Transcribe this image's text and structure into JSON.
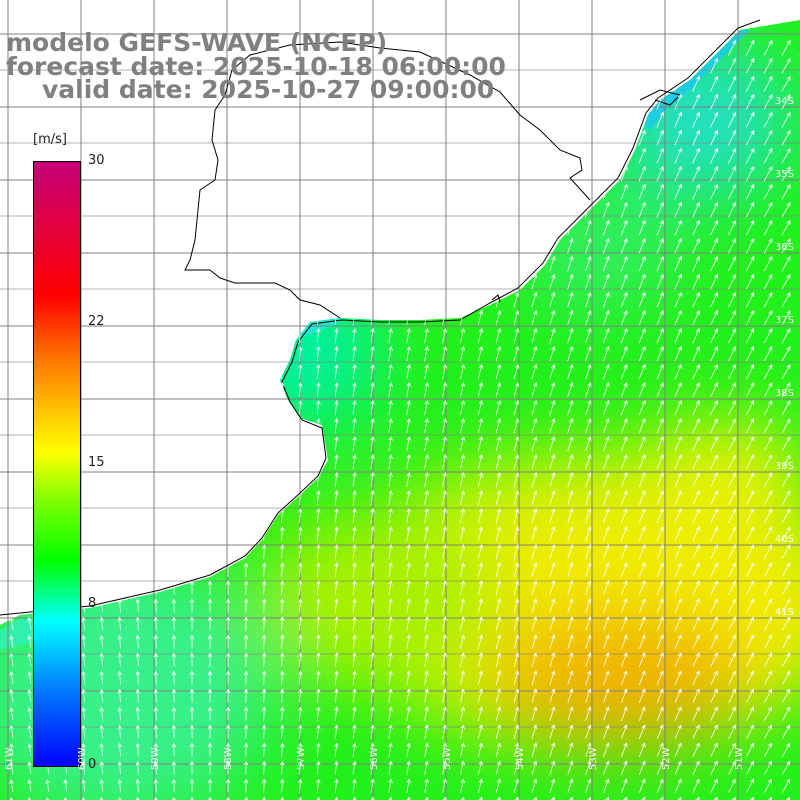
{
  "title": {
    "model": "modelo GEFS-WAVE (NCEP)",
    "forecast": "forecast date: 2025-10-18 06:00:00",
    "valid": "valid date: 2025-10-27 09:00:00"
  },
  "colorbar": {
    "units": "[m/s]",
    "ticks": [
      {
        "value": 30,
        "label": "30"
      },
      {
        "value": 22,
        "label": "22"
      },
      {
        "value": 15,
        "label": "15"
      },
      {
        "value": 8,
        "label": "8"
      },
      {
        "value": 0,
        "label": "0"
      }
    ],
    "range": [
      0,
      30
    ]
  },
  "axes": {
    "lon_labels": [
      "61W",
      "60W",
      "59W",
      "58W",
      "57W",
      "56W",
      "55W",
      "54W",
      "53W",
      "52W",
      "51W"
    ],
    "lat_labels": [
      "34S",
      "35S",
      "36S",
      "37S",
      "38S",
      "39S",
      "40S",
      "41S"
    ]
  },
  "colors": {
    "land": "#ffffff",
    "grid": "#808080",
    "coast": "#000000",
    "arrow": "#ffffff"
  },
  "wind": {
    "direction": "from south-southwest toward north-northeast",
    "speed_range_ms": [
      8,
      20
    ]
  }
}
